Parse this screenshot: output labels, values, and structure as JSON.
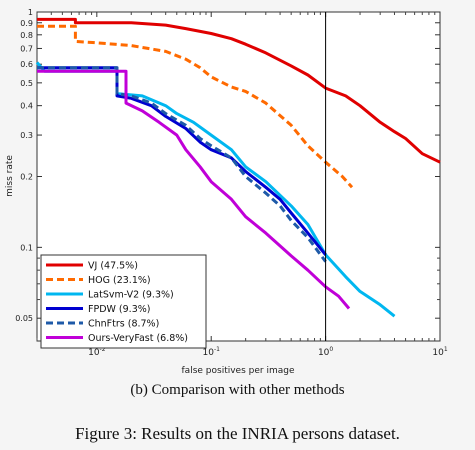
{
  "chart_data": {
    "type": "line",
    "title": "",
    "xlabel": "false positives per image",
    "ylabel": "miss rate",
    "xscale": "log",
    "yscale": "log",
    "xlim": [
      0.003,
      10
    ],
    "ylim": [
      0.04,
      1
    ],
    "grid": false,
    "legend_position": "bottom-left",
    "x_tick_labels": [
      "10^-2",
      "10^-1",
      "10^0",
      "10^1"
    ],
    "y_tick_labels": [
      "0.05",
      "0.1",
      "0.2",
      "0.3",
      "0.4",
      "0.5",
      "0.6",
      "0.7",
      "0.8",
      "0.9",
      "1"
    ],
    "reference_line_x": 1,
    "series": [
      {
        "name": "VJ (47.5%)",
        "color": "#e00000",
        "dash": "solid",
        "points": [
          [
            0.003,
            0.93
          ],
          [
            0.0065,
            0.93
          ],
          [
            0.0065,
            0.9
          ],
          [
            0.02,
            0.9
          ],
          [
            0.04,
            0.88
          ],
          [
            0.06,
            0.85
          ],
          [
            0.1,
            0.81
          ],
          [
            0.15,
            0.77
          ],
          [
            0.2,
            0.73
          ],
          [
            0.3,
            0.67
          ],
          [
            0.5,
            0.59
          ],
          [
            0.7,
            0.54
          ],
          [
            1.0,
            0.475
          ],
          [
            1.5,
            0.44
          ],
          [
            2.0,
            0.4
          ],
          [
            3.0,
            0.34
          ],
          [
            4.0,
            0.31
          ],
          [
            5.0,
            0.29
          ],
          [
            7.0,
            0.25
          ],
          [
            10.0,
            0.23
          ]
        ]
      },
      {
        "name": "HOG (23.1%)",
        "color": "#ff6a00",
        "dash": "dashed",
        "points": [
          [
            0.003,
            0.87
          ],
          [
            0.0065,
            0.87
          ],
          [
            0.0065,
            0.75
          ],
          [
            0.01,
            0.74
          ],
          [
            0.02,
            0.72
          ],
          [
            0.04,
            0.68
          ],
          [
            0.06,
            0.63
          ],
          [
            0.08,
            0.58
          ],
          [
            0.1,
            0.53
          ],
          [
            0.15,
            0.48
          ],
          [
            0.2,
            0.46
          ],
          [
            0.3,
            0.41
          ],
          [
            0.5,
            0.33
          ],
          [
            0.7,
            0.27
          ],
          [
            1.0,
            0.23
          ],
          [
            1.4,
            0.2
          ],
          [
            1.7,
            0.18
          ]
        ]
      },
      {
        "name": "LatSvm-V2 (9.3%)",
        "color": "#00b7f0",
        "dash": "solid",
        "points": [
          [
            0.003,
            0.61
          ],
          [
            0.0035,
            0.56
          ],
          [
            0.015,
            0.56
          ],
          [
            0.015,
            0.45
          ],
          [
            0.025,
            0.44
          ],
          [
            0.04,
            0.4
          ],
          [
            0.05,
            0.37
          ],
          [
            0.07,
            0.34
          ],
          [
            0.1,
            0.3
          ],
          [
            0.15,
            0.26
          ],
          [
            0.2,
            0.22
          ],
          [
            0.3,
            0.19
          ],
          [
            0.5,
            0.15
          ],
          [
            0.7,
            0.125
          ],
          [
            1.0,
            0.093
          ],
          [
            1.5,
            0.075
          ],
          [
            2.0,
            0.065
          ],
          [
            3.0,
            0.057
          ],
          [
            4.0,
            0.051
          ]
        ]
      },
      {
        "name": "FPDW (9.3%)",
        "color": "#0000d0",
        "dash": "solid",
        "points": [
          [
            0.003,
            0.58
          ],
          [
            0.015,
            0.58
          ],
          [
            0.015,
            0.44
          ],
          [
            0.02,
            0.43
          ],
          [
            0.03,
            0.4
          ],
          [
            0.04,
            0.36
          ],
          [
            0.06,
            0.32
          ],
          [
            0.08,
            0.28
          ],
          [
            0.1,
            0.26
          ],
          [
            0.15,
            0.24
          ],
          [
            0.2,
            0.21
          ],
          [
            0.3,
            0.18
          ],
          [
            0.4,
            0.16
          ],
          [
            0.5,
            0.14
          ],
          [
            0.7,
            0.115
          ],
          [
            1.0,
            0.093
          ]
        ]
      },
      {
        "name": "ChnFtrs (8.7%)",
        "color": "#1e5aa8",
        "dash": "dashed",
        "points": [
          [
            0.003,
            0.58
          ],
          [
            0.015,
            0.58
          ],
          [
            0.015,
            0.45
          ],
          [
            0.02,
            0.44
          ],
          [
            0.03,
            0.41
          ],
          [
            0.04,
            0.37
          ],
          [
            0.06,
            0.33
          ],
          [
            0.08,
            0.29
          ],
          [
            0.1,
            0.27
          ],
          [
            0.15,
            0.24
          ],
          [
            0.2,
            0.2
          ],
          [
            0.3,
            0.17
          ],
          [
            0.4,
            0.15
          ],
          [
            0.5,
            0.13
          ],
          [
            0.7,
            0.11
          ],
          [
            1.0,
            0.087
          ]
        ]
      },
      {
        "name": "Ours-VeryFast (6.8%)",
        "color": "#c000d8",
        "dash": "solid",
        "points": [
          [
            0.003,
            0.56
          ],
          [
            0.018,
            0.56
          ],
          [
            0.018,
            0.41
          ],
          [
            0.025,
            0.38
          ],
          [
            0.035,
            0.34
          ],
          [
            0.05,
            0.3
          ],
          [
            0.06,
            0.26
          ],
          [
            0.08,
            0.22
          ],
          [
            0.1,
            0.19
          ],
          [
            0.15,
            0.16
          ],
          [
            0.2,
            0.135
          ],
          [
            0.3,
            0.115
          ],
          [
            0.5,
            0.092
          ],
          [
            0.7,
            0.08
          ],
          [
            1.0,
            0.068
          ],
          [
            1.3,
            0.062
          ],
          [
            1.6,
            0.055
          ]
        ]
      }
    ]
  },
  "captions": {
    "sub": "(b) Comparison with other methods",
    "figure": "Figure 3: Results on the INRIA persons dataset."
  }
}
